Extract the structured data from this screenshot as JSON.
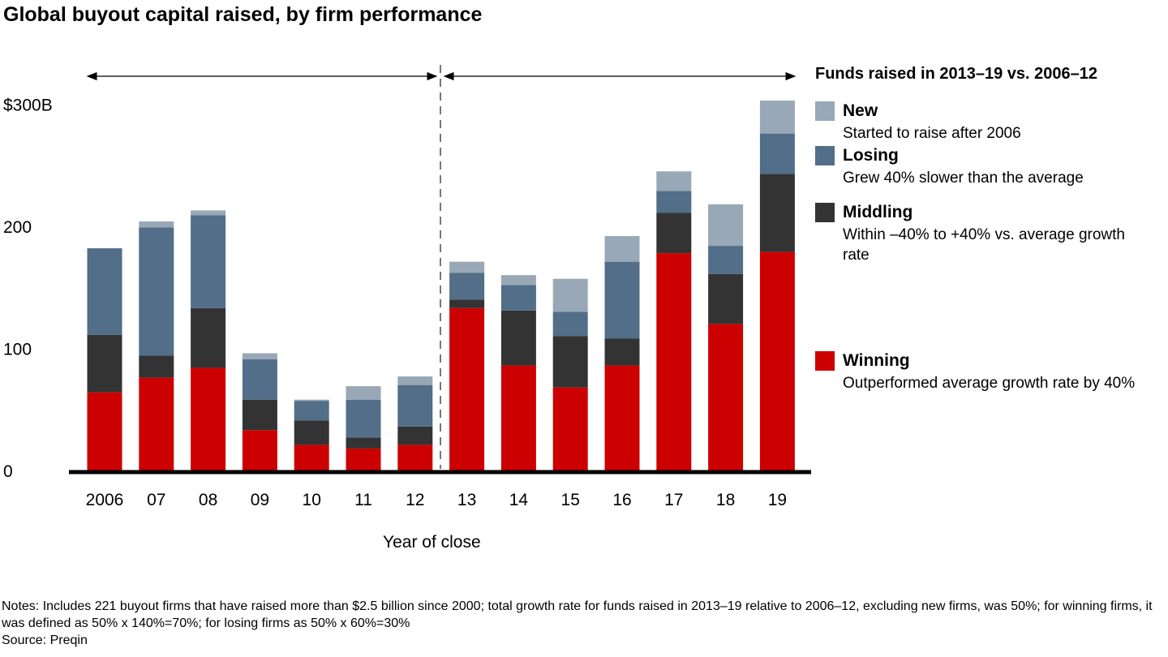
{
  "title": "Global buyout capital raised, by firm performance",
  "legend": {
    "heading": "Funds raised in 2013–19 vs. 2006–12",
    "items": [
      {
        "name": "New",
        "desc": "Started to raise after 2006",
        "color": "#98a8b6"
      },
      {
        "name": "Losing",
        "desc": "Grew 40% slower than the average",
        "color": "#526e88"
      },
      {
        "name": "Middling",
        "desc": "Within –40% to +40% vs. average growth rate",
        "color": "#333333"
      },
      {
        "name": "Winning",
        "desc": "Outperformed average growth rate by 40%",
        "color": "#cc0000"
      }
    ]
  },
  "notes": "Notes: Includes 221 buyout firms that have raised more than $2.5 billion since 2000; total growth rate for funds raised in 2013–19 relative to 2006–12, excluding new firms, was 50%; for winning firms, it was defined as 50% x 140%=70%; for losing firms as 50% x 60%=30%",
  "source": "Source: Preqin",
  "chart_data": {
    "type": "bar",
    "stacked": true,
    "title": "Global buyout capital raised, by firm performance",
    "xlabel": "Year of close",
    "ylabel": "",
    "ylim": [
      0,
      300
    ],
    "yticks": [
      0,
      100,
      200,
      300
    ],
    "ytick_labels": [
      "0",
      "100",
      "200",
      "$300B"
    ],
    "categories": [
      "2006",
      "07",
      "08",
      "09",
      "10",
      "11",
      "12",
      "13",
      "14",
      "15",
      "16",
      "17",
      "18",
      "19"
    ],
    "periods": [
      "2006–12",
      "2013–19"
    ],
    "legend_position": "right",
    "grid": false,
    "series": [
      {
        "name": "Winning",
        "color": "#cc0000",
        "values": [
          64,
          76,
          84,
          33,
          21,
          18,
          21,
          133,
          86,
          68,
          86,
          178,
          120,
          179
        ]
      },
      {
        "name": "Middling",
        "color": "#333333",
        "values": [
          47,
          18,
          49,
          25,
          20,
          9,
          15,
          7,
          45,
          42,
          22,
          33,
          41,
          64
        ]
      },
      {
        "name": "Losing",
        "color": "#526e88",
        "values": [
          71,
          105,
          76,
          33,
          16,
          31,
          34,
          22,
          21,
          20,
          63,
          18,
          23,
          33
        ]
      },
      {
        "name": "New",
        "color": "#98a8b6",
        "values": [
          0,
          5,
          4,
          5,
          1,
          11,
          7,
          9,
          8,
          27,
          21,
          16,
          34,
          27
        ]
      }
    ]
  }
}
